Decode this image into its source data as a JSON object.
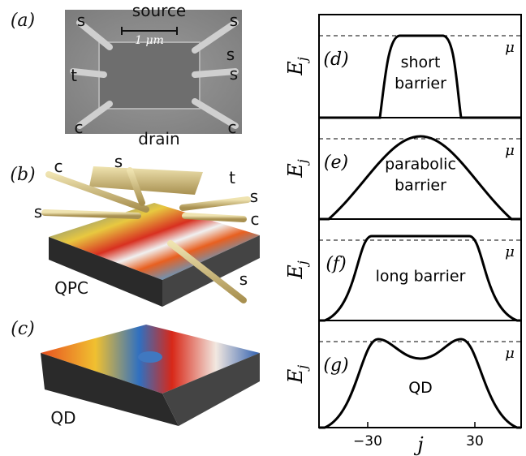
{
  "left": {
    "a": {
      "label": "(a)",
      "top": "source",
      "bottom": "drain",
      "scale": "1 μm",
      "leads": [
        "s",
        "s",
        "c",
        "c",
        "t",
        "s",
        "s"
      ]
    },
    "b": {
      "label": "(b)",
      "leads": [
        "c",
        "s",
        "t",
        "s",
        "s",
        "c",
        "s"
      ],
      "caption": "QPC"
    },
    "c": {
      "label": "(c)",
      "caption": "QD"
    }
  },
  "right": {
    "ylabel": "E",
    "ylabel_sub": "j",
    "mu": "μ",
    "xlabel": "j",
    "xticks": [
      "−30",
      "30"
    ],
    "panels": [
      {
        "label": "(d)",
        "text": [
          "short",
          "barrier"
        ]
      },
      {
        "label": "(e)",
        "text": [
          "parabolic",
          "barrier"
        ]
      },
      {
        "label": "(f)",
        "text": [
          "long barrier"
        ]
      },
      {
        "label": "(g)",
        "text": [
          "QD"
        ]
      }
    ]
  }
}
